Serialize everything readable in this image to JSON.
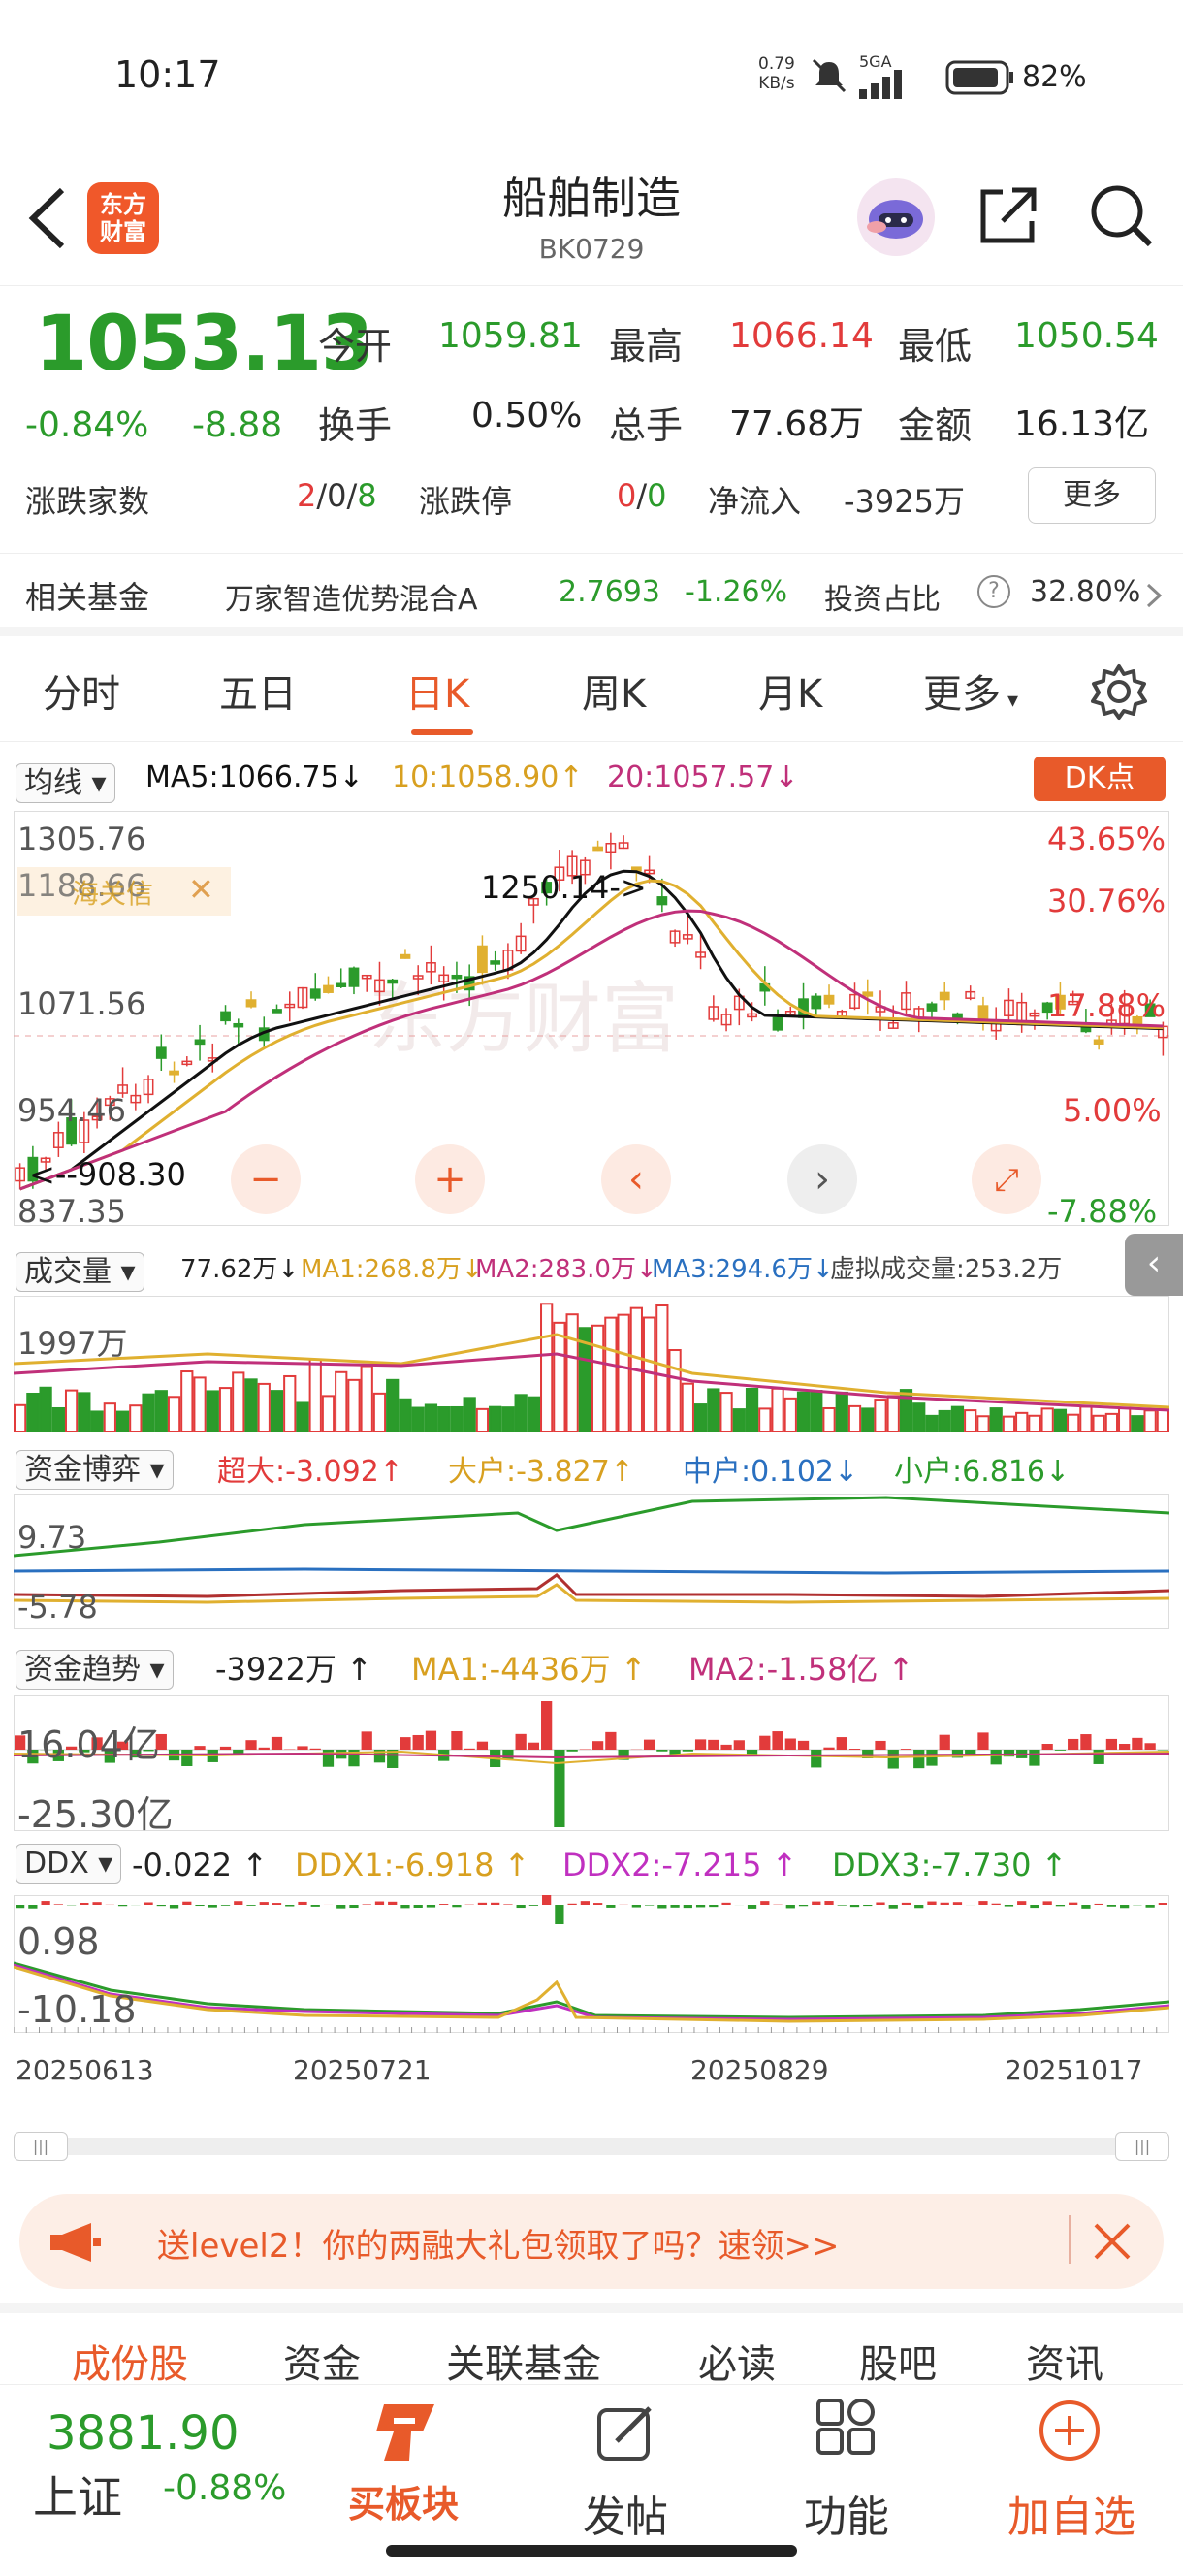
{
  "status": {
    "time": "10:17",
    "net_speed": "0.79",
    "net_unit": "KB/s",
    "signal": "5GA",
    "battery": "82%"
  },
  "header": {
    "logo_line1": "东方",
    "logo_line2": "财富",
    "title": "船舶制造",
    "code": "BK0729"
  },
  "quote": {
    "price": "1053.13",
    "change_pct": "-0.84%",
    "change": "-8.88",
    "open_label": "今开",
    "open": "1059.81",
    "high_label": "最高",
    "high": "1066.14",
    "low_label": "最低",
    "low": "1050.54",
    "turnover_label": "换手",
    "turnover": "0.50%",
    "volume_label": "总手",
    "volume": "77.68万",
    "amount_label": "金额",
    "amount": "16.13亿",
    "updown_label": "涨跌家数",
    "updown_up": "2",
    "updown_flat": "0",
    "updown_down": "8",
    "limit_label": "涨跌停",
    "limit_up": "0",
    "limit_down": "0",
    "inflow_label": "净流入",
    "inflow": "-3925万",
    "more": "更多"
  },
  "fund": {
    "label": "相关基金",
    "name": "万家智造优势混合A",
    "nav": "2.7693",
    "change": "-1.26%",
    "ratio_label": "投资占比",
    "ratio": "32.80%"
  },
  "tabs": [
    "分时",
    "五日",
    "日K",
    "周K",
    "月K",
    "更多"
  ],
  "active_tab": "日K",
  "kline": {
    "indicator": "均线",
    "ma5": "MA5:1066.75",
    "ma10": "10:1058.90",
    "ma20": "20:1057.57",
    "dk_button": "DK点",
    "y_labels": [
      "1305.76",
      "1188.66",
      "1071.56",
      "954.46",
      "837.35"
    ],
    "pct_labels": [
      "43.65%",
      "30.76%",
      "17.88%",
      "5.00%",
      "-7.88%"
    ],
    "mark_high": "1250.14->",
    "mark_low": "<--908.30",
    "overlay_label": "海关信",
    "overlay_close": "✕",
    "watermark": "东方财富"
  },
  "volume": {
    "label": "成交量",
    "value": "77.62万",
    "ma1": "MA1:268.8万",
    "ma2": "MA2:283.0万",
    "ma3": "MA3:294.6万",
    "virtual": "虚拟成交量:253.2万",
    "y_label": "1997万"
  },
  "fund_game": {
    "label": "资金博弈",
    "super": "超大:-3.092",
    "large": "大户:-3.827",
    "mid": "中户:0.102",
    "small": "小户:6.816",
    "y_top": "9.73",
    "y_bot": "-5.78"
  },
  "fund_trend": {
    "label": "资金趋势",
    "value": "-3922万",
    "ma1": "MA1:-4436万",
    "ma2": "MA2:-1.58亿",
    "y_top": "16.04亿",
    "y_bot": "-25.30亿"
  },
  "ddx": {
    "label": "DDX",
    "value": "-0.022",
    "ddx1": "DDX1:-6.918",
    "ddx2": "DDX2:-7.215",
    "ddx3": "DDX3:-7.730",
    "y_top": "0.98",
    "y_bot": "-10.18"
  },
  "dates": [
    "20250613",
    "20250721",
    "20250829",
    "20251017"
  ],
  "banner": {
    "text": "送level2！你的两融大礼包领取了吗？速领>>"
  },
  "subtabs": [
    "成份股",
    "资金",
    "关联基金",
    "必读",
    "股吧",
    "资讯"
  ],
  "bottom": {
    "index_value": "3881.90",
    "index_name": "上证",
    "index_change": "-0.88%",
    "buy_label": "买板块",
    "post_label": "发帖",
    "func_label": "功能",
    "add_label": "加自选"
  },
  "colors": {
    "accent": "#e85a2a",
    "up": "#e23b3b",
    "down": "#2b9b2b",
    "ma5": "#111111",
    "ma10": "#e0b030",
    "ma20": "#c0307a"
  }
}
